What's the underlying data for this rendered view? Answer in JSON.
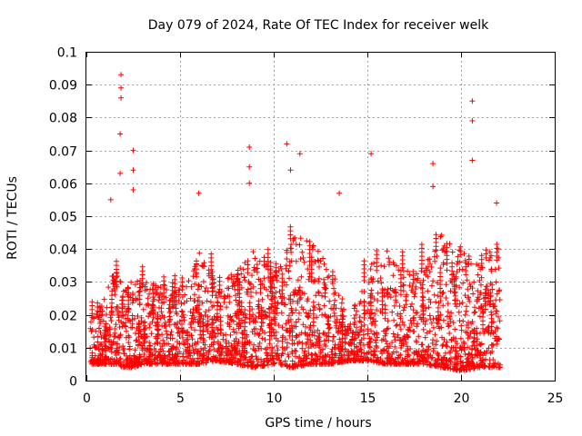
{
  "chart_data": {
    "type": "scatter",
    "title": "Day 079 of 2024, Rate Of TEC Index for receiver welk",
    "xlabel": "GPS time / hours",
    "ylabel": "ROTI / TECUs",
    "xlim": [
      0,
      25
    ],
    "ylim": [
      0,
      0.1
    ],
    "xticks": [
      0,
      5,
      10,
      15,
      20,
      25
    ],
    "xtick_labels": [
      "0",
      "5",
      "10",
      "15",
      "20",
      "25"
    ],
    "yticks": [
      0,
      0.01,
      0.02,
      0.03,
      0.04,
      0.05,
      0.06,
      0.07,
      0.08,
      0.09,
      0.1
    ],
    "ytick_labels": [
      "0",
      "0.01",
      "0.02",
      "0.03",
      "0.04",
      "0.05",
      "0.06",
      "0.07",
      "0.08",
      "0.09",
      "0.1"
    ],
    "grid": true,
    "marker": "+",
    "marker_color": "#ff0000",
    "data_range_hours": [
      0.2,
      22.1
    ],
    "series": [
      {
        "name": "ROTI",
        "notable_points": [
          {
            "x": 1.85,
            "y": 0.093
          },
          {
            "x": 1.85,
            "y": 0.089
          },
          {
            "x": 1.85,
            "y": 0.086
          },
          {
            "x": 1.8,
            "y": 0.075
          },
          {
            "x": 1.8,
            "y": 0.063
          },
          {
            "x": 2.5,
            "y": 0.07
          },
          {
            "x": 2.5,
            "y": 0.064
          },
          {
            "x": 2.5,
            "y": 0.058
          },
          {
            "x": 1.3,
            "y": 0.055
          },
          {
            "x": 6.0,
            "y": 0.057
          },
          {
            "x": 8.7,
            "y": 0.071
          },
          {
            "x": 8.7,
            "y": 0.065
          },
          {
            "x": 8.7,
            "y": 0.06
          },
          {
            "x": 10.7,
            "y": 0.072
          },
          {
            "x": 10.9,
            "y": 0.064
          },
          {
            "x": 11.4,
            "y": 0.069
          },
          {
            "x": 13.5,
            "y": 0.057
          },
          {
            "x": 15.2,
            "y": 0.069
          },
          {
            "x": 18.5,
            "y": 0.066
          },
          {
            "x": 18.5,
            "y": 0.059
          },
          {
            "x": 20.6,
            "y": 0.085
          },
          {
            "x": 20.6,
            "y": 0.079
          },
          {
            "x": 20.6,
            "y": 0.067
          },
          {
            "x": 21.9,
            "y": 0.054
          }
        ],
        "envelope": [
          {
            "x": 0.2,
            "lo": 0.005,
            "hi": 0.02
          },
          {
            "x": 1.0,
            "lo": 0.005,
            "hi": 0.025
          },
          {
            "x": 1.5,
            "lo": 0.005,
            "hi": 0.035
          },
          {
            "x": 2.0,
            "lo": 0.004,
            "hi": 0.03
          },
          {
            "x": 2.5,
            "lo": 0.004,
            "hi": 0.035
          },
          {
            "x": 3.0,
            "lo": 0.005,
            "hi": 0.03
          },
          {
            "x": 4.0,
            "lo": 0.005,
            "hi": 0.03
          },
          {
            "x": 5.0,
            "lo": 0.005,
            "hi": 0.028
          },
          {
            "x": 6.0,
            "lo": 0.005,
            "hi": 0.04
          },
          {
            "x": 7.0,
            "lo": 0.006,
            "hi": 0.03
          },
          {
            "x": 8.0,
            "lo": 0.005,
            "hi": 0.033
          },
          {
            "x": 9.0,
            "lo": 0.004,
            "hi": 0.04
          },
          {
            "x": 10.0,
            "lo": 0.005,
            "hi": 0.035
          },
          {
            "x": 11.0,
            "lo": 0.004,
            "hi": 0.045
          },
          {
            "x": 12.0,
            "lo": 0.005,
            "hi": 0.042
          },
          {
            "x": 13.0,
            "lo": 0.005,
            "hi": 0.035
          },
          {
            "x": 14.0,
            "lo": 0.006,
            "hi": 0.02
          },
          {
            "x": 15.0,
            "lo": 0.006,
            "hi": 0.035
          },
          {
            "x": 16.0,
            "lo": 0.005,
            "hi": 0.04
          },
          {
            "x": 17.0,
            "lo": 0.005,
            "hi": 0.035
          },
          {
            "x": 18.0,
            "lo": 0.005,
            "hi": 0.035
          },
          {
            "x": 19.0,
            "lo": 0.004,
            "hi": 0.045
          },
          {
            "x": 20.0,
            "lo": 0.003,
            "hi": 0.04
          },
          {
            "x": 21.0,
            "lo": 0.004,
            "hi": 0.035
          },
          {
            "x": 22.0,
            "lo": 0.004,
            "hi": 0.045
          }
        ]
      }
    ]
  }
}
